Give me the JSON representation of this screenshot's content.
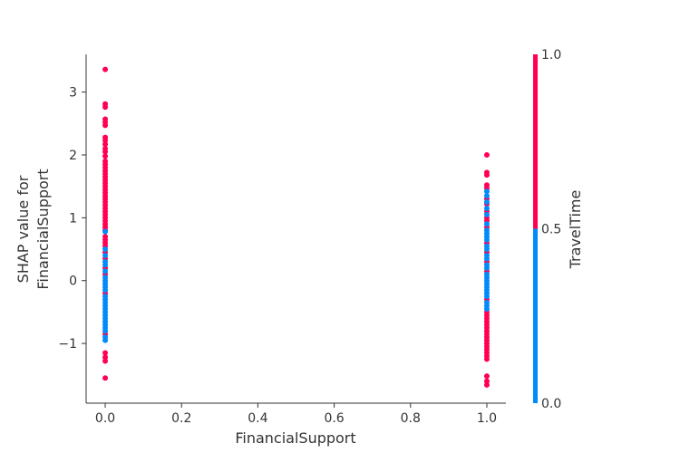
{
  "chart_data": {
    "type": "scatter",
    "title": "",
    "xlabel": "FinancialSupport",
    "ylabel_lines": [
      "SHAP value for",
      "FinancialSupport"
    ],
    "xlim": [
      -0.05,
      1.05
    ],
    "ylim": [
      -1.95,
      3.6
    ],
    "x_ticks": [
      0.0,
      0.2,
      0.4,
      0.6,
      0.8,
      1.0
    ],
    "x_tick_labels": [
      "0.0",
      "0.2",
      "0.4",
      "0.6",
      "0.8",
      "1.0"
    ],
    "y_ticks": [
      -1,
      0,
      1,
      2,
      3
    ],
    "y_tick_labels": [
      "−1",
      "0",
      "1",
      "2",
      "3"
    ],
    "colors": {
      "low": "#008bfb",
      "high": "#ff0052"
    },
    "colorbar": {
      "label": "TravelTime",
      "range": [
        0.0,
        1.0
      ],
      "split_value": 0.5,
      "ticks": [
        0.0,
        0.5,
        1.0
      ],
      "tick_labels": [
        "0.0",
        "0.5",
        "1.0"
      ]
    },
    "series": [
      {
        "name": "TravelTime=1",
        "color": "#ff0052",
        "points": [
          [
            0,
            3.36
          ],
          [
            0,
            2.81
          ],
          [
            0,
            2.76
          ],
          [
            0,
            2.57
          ],
          [
            0,
            2.52
          ],
          [
            0,
            2.47
          ],
          [
            0,
            2.28
          ],
          [
            0,
            2.23
          ],
          [
            0,
            2.17
          ],
          [
            0,
            2.1
          ],
          [
            0,
            2.05
          ],
          [
            0,
            1.98
          ],
          [
            0,
            1.9
          ],
          [
            0,
            1.85
          ],
          [
            0,
            1.8
          ],
          [
            0,
            1.75
          ],
          [
            0,
            1.7
          ],
          [
            0,
            1.65
          ],
          [
            0,
            1.6
          ],
          [
            0,
            1.55
          ],
          [
            0,
            1.5
          ],
          [
            0,
            1.45
          ],
          [
            0,
            1.4
          ],
          [
            0,
            1.35
          ],
          [
            0,
            1.3
          ],
          [
            0,
            1.25
          ],
          [
            0,
            1.2
          ],
          [
            0,
            1.15
          ],
          [
            0,
            1.1
          ],
          [
            0,
            1.05
          ],
          [
            0,
            1.0
          ],
          [
            0,
            0.95
          ],
          [
            0,
            0.9
          ],
          [
            0,
            0.85
          ],
          [
            0,
            0.8
          ],
          [
            0,
            0.7
          ],
          [
            0,
            0.65
          ],
          [
            0,
            0.6
          ],
          [
            0,
            0.55
          ],
          [
            0,
            0.45
          ],
          [
            0,
            0.35
          ],
          [
            0,
            0.2
          ],
          [
            0,
            0.1
          ],
          [
            0,
            -0.2
          ],
          [
            0,
            -0.85
          ],
          [
            0,
            -1.15
          ],
          [
            0,
            -1.22
          ],
          [
            0,
            -1.28
          ],
          [
            0,
            -1.55
          ],
          [
            1,
            2.0
          ],
          [
            1,
            1.72
          ],
          [
            1,
            1.68
          ],
          [
            1,
            1.52
          ],
          [
            1,
            1.47
          ],
          [
            1,
            1.3
          ],
          [
            1,
            1.22
          ],
          [
            1,
            1.1
          ],
          [
            1,
            1.0
          ],
          [
            1,
            0.95
          ],
          [
            1,
            0.85
          ],
          [
            1,
            0.6
          ],
          [
            1,
            0.45
          ],
          [
            1,
            0.3
          ],
          [
            1,
            0.15
          ],
          [
            1,
            -0.3
          ],
          [
            1,
            -0.5
          ],
          [
            1,
            -0.55
          ],
          [
            1,
            -0.6
          ],
          [
            1,
            -0.65
          ],
          [
            1,
            -0.7
          ],
          [
            1,
            -0.75
          ],
          [
            1,
            -0.8
          ],
          [
            1,
            -0.85
          ],
          [
            1,
            -0.9
          ],
          [
            1,
            -0.95
          ],
          [
            1,
            -1.0
          ],
          [
            1,
            -1.05
          ],
          [
            1,
            -1.1
          ],
          [
            1,
            -1.15
          ],
          [
            1,
            -1.2
          ],
          [
            1,
            -1.25
          ],
          [
            1,
            -1.52
          ],
          [
            1,
            -1.6
          ],
          [
            1,
            -1.66
          ]
        ]
      },
      {
        "name": "TravelTime=0",
        "color": "#008bfb",
        "points": [
          [
            0,
            0.78
          ],
          [
            0,
            0.5
          ],
          [
            0,
            0.4
          ],
          [
            0,
            0.3
          ],
          [
            0,
            0.25
          ],
          [
            0,
            0.15
          ],
          [
            0,
            0.05
          ],
          [
            0,
            0.0
          ],
          [
            0,
            -0.05
          ],
          [
            0,
            -0.1
          ],
          [
            0,
            -0.15
          ],
          [
            0,
            -0.25
          ],
          [
            0,
            -0.3
          ],
          [
            0,
            -0.35
          ],
          [
            0,
            -0.4
          ],
          [
            0,
            -0.45
          ],
          [
            0,
            -0.5
          ],
          [
            0,
            -0.55
          ],
          [
            0,
            -0.6
          ],
          [
            0,
            -0.65
          ],
          [
            0,
            -0.7
          ],
          [
            0,
            -0.75
          ],
          [
            0,
            -0.8
          ],
          [
            0,
            -0.9
          ],
          [
            0,
            -0.95
          ],
          [
            1,
            1.42
          ],
          [
            1,
            1.35
          ],
          [
            1,
            1.25
          ],
          [
            1,
            1.15
          ],
          [
            1,
            1.05
          ],
          [
            1,
            0.9
          ],
          [
            1,
            0.8
          ],
          [
            1,
            0.75
          ],
          [
            1,
            0.7
          ],
          [
            1,
            0.65
          ],
          [
            1,
            0.55
          ],
          [
            1,
            0.5
          ],
          [
            1,
            0.4
          ],
          [
            1,
            0.35
          ],
          [
            1,
            0.25
          ],
          [
            1,
            0.2
          ],
          [
            1,
            0.1
          ],
          [
            1,
            0.05
          ],
          [
            1,
            0.0
          ],
          [
            1,
            -0.05
          ],
          [
            1,
            -0.1
          ],
          [
            1,
            -0.15
          ],
          [
            1,
            -0.2
          ],
          [
            1,
            -0.25
          ],
          [
            1,
            -0.35
          ],
          [
            1,
            -0.4
          ],
          [
            1,
            -0.45
          ]
        ]
      }
    ]
  }
}
